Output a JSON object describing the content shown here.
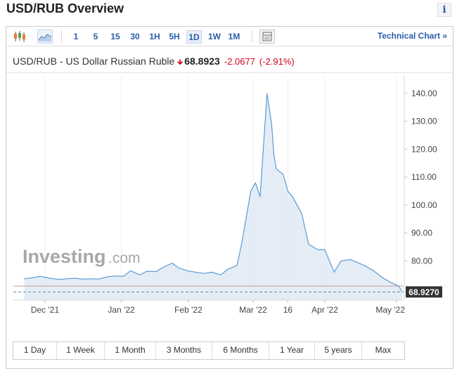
{
  "header": {
    "title": "USD/RUB Overview",
    "info_label": "i"
  },
  "toolbar": {
    "icons": [
      "candlestick-chart-icon",
      "area-chart-icon",
      "table-icon"
    ],
    "timeframes": [
      "1",
      "5",
      "15",
      "30",
      "1H",
      "5H",
      "1D",
      "1W",
      "1M"
    ],
    "active_timeframe": "1D",
    "technical_link": "Technical Chart »"
  },
  "quote": {
    "name": "USD/RUB - US Dollar Russian Ruble",
    "price": "68.8923",
    "change": "-2.0677",
    "change_pct": "(-2.91%)",
    "direction": "down"
  },
  "watermark": {
    "brand": "Investing",
    "suffix": ".com"
  },
  "chart_data": {
    "type": "area",
    "title": "",
    "xlabel": "",
    "ylabel": "",
    "ylim": [
      66,
      146
    ],
    "yticks": [
      80,
      90,
      100,
      110,
      120,
      130,
      140
    ],
    "ytick_labels": [
      "80.00",
      "90.00",
      "100.00",
      "110.00",
      "120.00",
      "130.00",
      "140.00"
    ],
    "x_tick_labels": [
      {
        "label": "Dec '21",
        "date": "2021-12-01"
      },
      {
        "label": "Jan '22",
        "date": "2022-01-03"
      },
      {
        "label": "Feb '22",
        "date": "2022-02-01"
      },
      {
        "label": "Mar '22",
        "date": "2022-03-01"
      },
      {
        "label": "16",
        "date": "2022-03-16"
      },
      {
        "label": "Apr '22",
        "date": "2022-04-01"
      },
      {
        "label": "May '22",
        "date": "2022-05-02"
      }
    ],
    "last_value_label": "68.9270",
    "previous_close": 71.0,
    "grid": "vertical",
    "colors": {
      "line": "#5b9bd5",
      "fill": "#dfeaf5",
      "last_value_bg": "#333333",
      "prev_close": "#c96a6a"
    },
    "series": [
      {
        "x": [
          "2021-11-22",
          "2021-11-25",
          "2021-11-29",
          "2021-12-03",
          "2021-12-07",
          "2021-12-10",
          "2021-12-14",
          "2021-12-17",
          "2021-12-21",
          "2021-12-24",
          "2021-12-28",
          "2021-12-31",
          "2022-01-04",
          "2022-01-07",
          "2022-01-11",
          "2022-01-14",
          "2022-01-18",
          "2022-01-21",
          "2022-01-25",
          "2022-01-28",
          "2022-02-01",
          "2022-02-04",
          "2022-02-08",
          "2022-02-11",
          "2022-02-15",
          "2022-02-18",
          "2022-02-22",
          "2022-02-24",
          "2022-02-28",
          "2022-03-02",
          "2022-03-04",
          "2022-03-07",
          "2022-03-09",
          "2022-03-10",
          "2022-03-11",
          "2022-03-14",
          "2022-03-16",
          "2022-03-18",
          "2022-03-22",
          "2022-03-25",
          "2022-03-29",
          "2022-04-01",
          "2022-04-05",
          "2022-04-08",
          "2022-04-12",
          "2022-04-15",
          "2022-04-19",
          "2022-04-22",
          "2022-04-26",
          "2022-04-29",
          "2022-05-03",
          "2022-05-06"
        ],
        "y": [
          73.6,
          73.9,
          74.5,
          73.8,
          73.4,
          73.6,
          73.8,
          73.5,
          73.6,
          73.5,
          74.3,
          74.6,
          74.5,
          76.5,
          75.0,
          76.3,
          76.2,
          77.7,
          79.2,
          77.4,
          76.4,
          76.0,
          75.5,
          76.0,
          75.0,
          77.0,
          78.4,
          86.0,
          105.0,
          108.0,
          103.0,
          140.0,
          129.0,
          118.0,
          113.0,
          111.0,
          105.0,
          103.0,
          97.0,
          86.0,
          84.0,
          84.0,
          76.0,
          80.0,
          80.5,
          79.5,
          78.0,
          76.5,
          74.0,
          72.5,
          71.0,
          68.9
        ]
      }
    ]
  },
  "time_ranges": [
    "1 Day",
    "1 Week",
    "1 Month",
    "3 Months",
    "6 Months",
    "1 Year",
    "5 years",
    "Max"
  ]
}
